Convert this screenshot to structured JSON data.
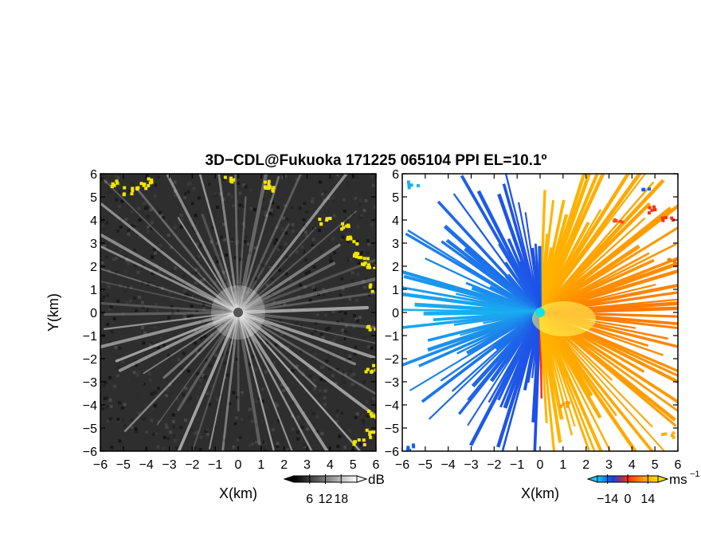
{
  "title": "3D−CDL@Fukuoka 171225 065104 PPI EL=10.1º",
  "colors": {
    "background": "#ffffff",
    "axis": "#000000",
    "snr_background": "#2e2e2e",
    "snr_rays": "#e6e6e6",
    "snr_clutter": "#f2e600",
    "velocity_toward": "#1060f0",
    "velocity_away": "#ff7a00",
    "velocity_zero": "#ffff60"
  },
  "chart_data": [
    {
      "panel": "left",
      "type": "heatmap",
      "field": "SNR",
      "xlabel": "X(km)",
      "ylabel": "Y(km)",
      "xlim": [
        -6,
        6
      ],
      "ylim": [
        -6,
        6
      ],
      "xticks": [
        "−6",
        "−5",
        "−4",
        "−3",
        "−2",
        "−1",
        "0",
        "1",
        "2",
        "3",
        "4",
        "5",
        "6"
      ],
      "yticks": [
        "−6",
        "−5",
        "−4",
        "−3",
        "−2",
        "−1",
        "0",
        "1",
        "2",
        "3",
        "4",
        "5",
        "6"
      ],
      "colorbar": {
        "unit": "dB",
        "ticks": [
          "6",
          "12",
          "18"
        ],
        "tick_values": [
          6,
          12,
          18
        ],
        "range": [
          0,
          24
        ],
        "palette": [
          "#000000",
          "#ffffff"
        ]
      }
    },
    {
      "panel": "right",
      "type": "heatmap",
      "field": "Doppler velocity",
      "xlabel": "X(km)",
      "xlim": [
        -6,
        6
      ],
      "ylim": [
        -6,
        6
      ],
      "xticks": [
        "−6",
        "−5",
        "−4",
        "−3",
        "−2",
        "−1",
        "0",
        "1",
        "2",
        "3",
        "4",
        "5",
        "6"
      ],
      "yticks": [
        "−6",
        "−5",
        "−4",
        "−3",
        "−2",
        "−1",
        "0",
        "1",
        "2",
        "3",
        "4",
        "5",
        "6"
      ],
      "colorbar": {
        "unit": "ms",
        "unit_exponent": "−1",
        "ticks": [
          "−14",
          "0",
          "14"
        ],
        "tick_values": [
          -14,
          0,
          14
        ],
        "range": [
          -21,
          21
        ],
        "palette": [
          "#19c8f0",
          "#1040e0",
          "#ff2a10",
          "#ff9900",
          "#ffdd00"
        ]
      }
    }
  ]
}
